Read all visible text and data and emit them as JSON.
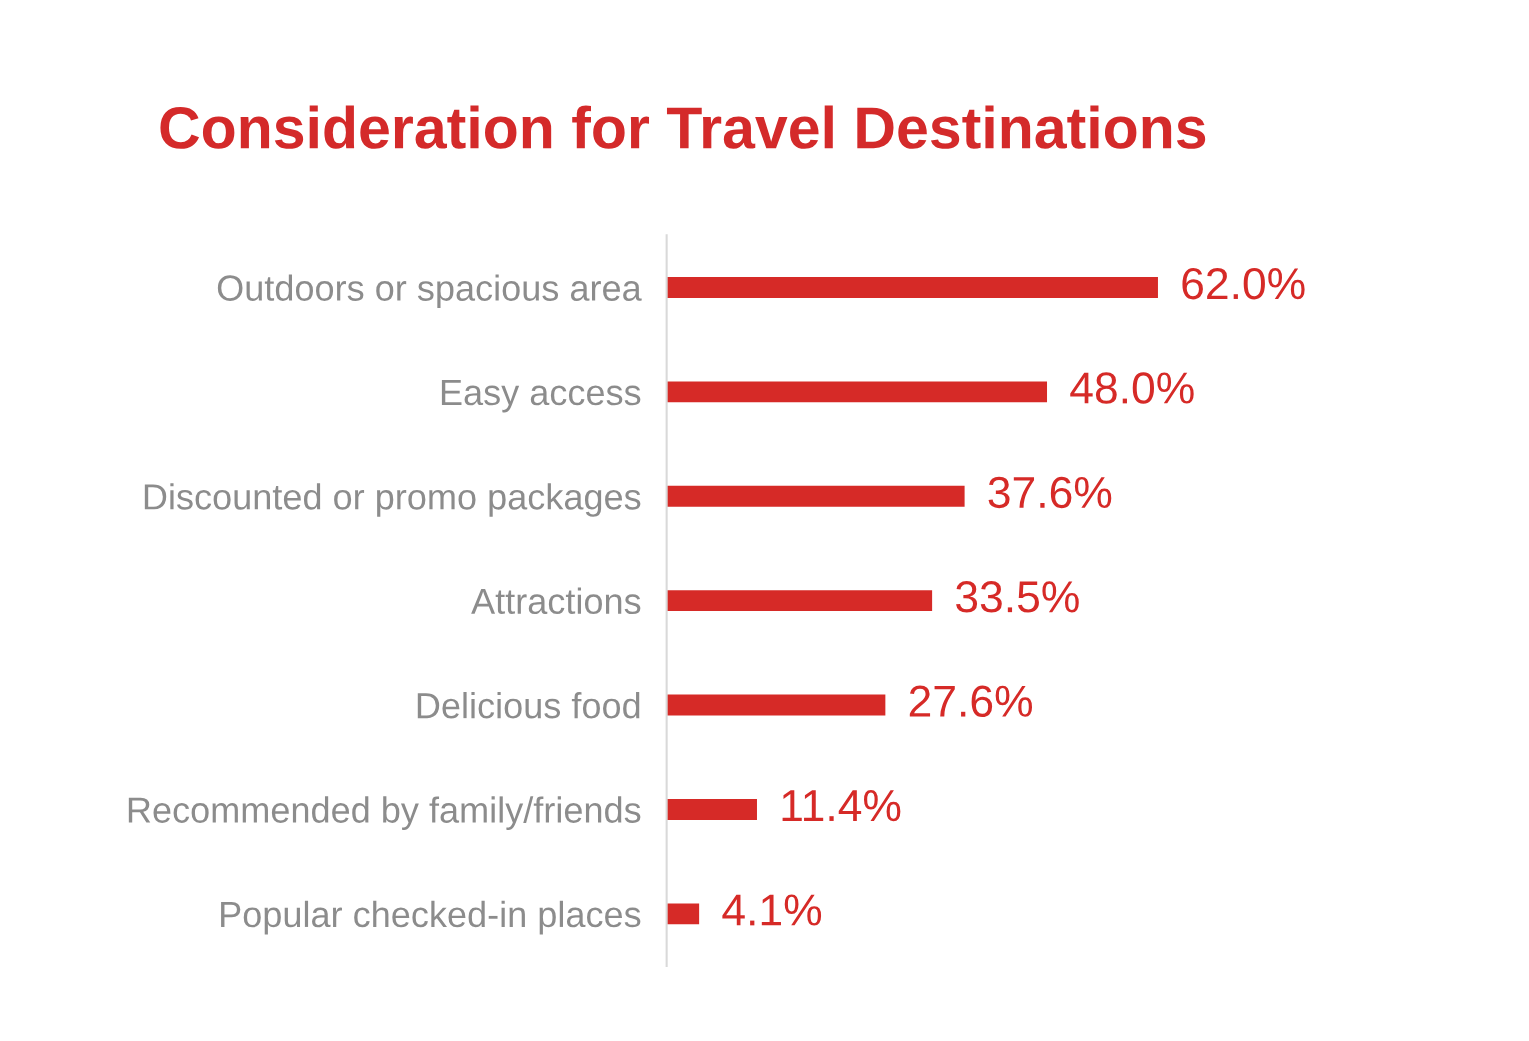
{
  "chart_data": {
    "type": "bar",
    "orientation": "horizontal",
    "title": "Consideration for Travel Destinations",
    "categories": [
      "Outdoors or spacious area",
      "Easy access",
      "Discounted or promo packages",
      "Attractions",
      "Delicious food",
      "Recommended by family/friends",
      "Popular checked-in places"
    ],
    "values": [
      62.0,
      48.0,
      37.6,
      33.5,
      27.6,
      11.4,
      4.1
    ],
    "value_labels": [
      "62.0%",
      "48.0%",
      "37.6%",
      "33.5%",
      "27.6%",
      "11.4%",
      "4.1%"
    ],
    "color": "#d62a27",
    "tick_labels": "y"
  }
}
